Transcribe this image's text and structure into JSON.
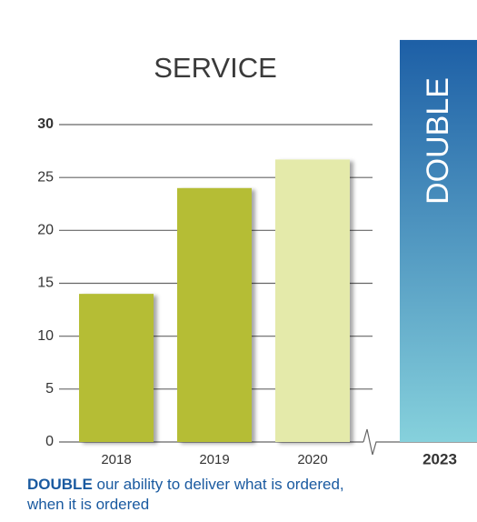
{
  "chart_data": {
    "type": "bar",
    "title": "SERVICE",
    "categories": [
      "2018",
      "2019",
      "2020"
    ],
    "values": [
      14,
      24,
      26.7
    ],
    "colors": [
      "#b5bd36",
      "#b5bd36",
      "#e4eaaa"
    ],
    "ylim": [
      0,
      30
    ],
    "yticks": [
      0,
      5,
      10,
      15,
      20,
      25,
      30
    ],
    "grid": true,
    "goal": {
      "category": "2023",
      "label": "DOUBLE",
      "value": 38,
      "color_top": "#1d5fa6",
      "color_bottom": "#86d1dc"
    },
    "caption": {
      "emphasis": "DOUBLE",
      "lines": [
        "our ability to deliver what is ordered,",
        "when it is ordered"
      ]
    }
  }
}
